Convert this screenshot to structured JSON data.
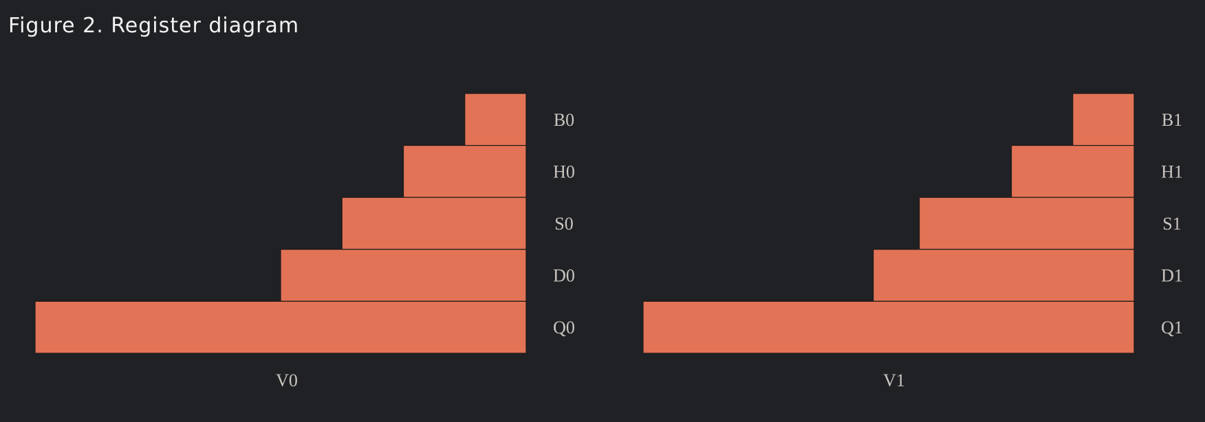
{
  "title": "Figure 2. Register diagram",
  "colors": {
    "background": "#202125",
    "bar": "#e37356",
    "text": "#c9c5c0",
    "title": "#f2f2f2"
  },
  "diagram_data": {
    "groups": [
      {
        "name": "V0",
        "registers": [
          {
            "label": "B0",
            "width": 1
          },
          {
            "label": "H0",
            "width": 2
          },
          {
            "label": "S0",
            "width": 3
          },
          {
            "label": "D0",
            "width": 4
          },
          {
            "label": "Q0",
            "width": 8
          }
        ]
      },
      {
        "name": "V1",
        "registers": [
          {
            "label": "B1",
            "width": 1
          },
          {
            "label": "H1",
            "width": 2
          },
          {
            "label": "S1",
            "width": 3.5
          },
          {
            "label": "D1",
            "width": 4.25
          },
          {
            "label": "Q1",
            "width": 8
          }
        ]
      }
    ]
  }
}
